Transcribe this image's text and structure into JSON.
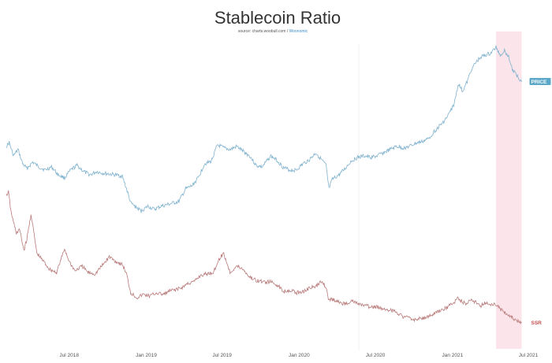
{
  "chart_data": {
    "type": "line",
    "title": "Stablecoin Ratio",
    "subtitle": "source: charts.woobull.com",
    "subtitle_link": "Woonomic",
    "x_ticks": [
      "Jul 2018",
      "Jan 2019",
      "Jul 2019",
      "Jan 2020",
      "Jul 2020",
      "Jan 2021",
      "Jul 2021"
    ],
    "x_tick_dates": [
      "2018-07-01",
      "2019-01-01",
      "2019-07-01",
      "2020-01-01",
      "2020-07-01",
      "2021-01-01",
      "2021-07-01"
    ],
    "xlim": [
      "2018-02-01",
      "2021-07-01"
    ],
    "grid": false,
    "highlight": {
      "from": "2021-04-15",
      "to": "2021-06-15",
      "color": "#fbe4ea"
    },
    "series": [
      {
        "name": "PRICE",
        "color": "#7fb2cf",
        "label_color": "#5aa7c8",
        "points": [
          [
            "2018-02-01",
            186
          ],
          [
            "2018-02-08",
            181
          ],
          [
            "2018-02-18",
            198
          ],
          [
            "2018-03-01",
            190
          ],
          [
            "2018-03-12",
            208
          ],
          [
            "2018-03-22",
            214
          ],
          [
            "2018-04-05",
            206
          ],
          [
            "2018-04-20",
            212
          ],
          [
            "2018-05-05",
            216
          ],
          [
            "2018-05-20",
            212
          ],
          [
            "2018-06-05",
            222
          ],
          [
            "2018-06-20",
            226
          ],
          [
            "2018-07-05",
            216
          ],
          [
            "2018-07-20",
            210
          ],
          [
            "2018-08-05",
            218
          ],
          [
            "2018-08-20",
            222
          ],
          [
            "2018-09-05",
            218
          ],
          [
            "2018-09-20",
            220
          ],
          [
            "2018-10-05",
            221
          ],
          [
            "2018-10-20",
            222
          ],
          [
            "2018-11-05",
            224
          ],
          [
            "2018-11-15",
            240
          ],
          [
            "2018-11-25",
            258
          ],
          [
            "2018-12-10",
            264
          ],
          [
            "2018-12-20",
            268
          ],
          [
            "2019-01-05",
            262
          ],
          [
            "2019-01-20",
            266
          ],
          [
            "2019-02-05",
            262
          ],
          [
            "2019-02-20",
            260
          ],
          [
            "2019-03-05",
            258
          ],
          [
            "2019-03-20",
            256
          ],
          [
            "2019-04-05",
            240
          ],
          [
            "2019-04-20",
            236
          ],
          [
            "2019-05-05",
            226
          ],
          [
            "2019-05-20",
            208
          ],
          [
            "2019-06-05",
            205
          ],
          [
            "2019-06-20",
            184
          ],
          [
            "2019-07-05",
            188
          ],
          [
            "2019-07-20",
            190
          ],
          [
            "2019-08-05",
            186
          ],
          [
            "2019-08-20",
            192
          ],
          [
            "2019-09-05",
            198
          ],
          [
            "2019-09-20",
            210
          ],
          [
            "2019-10-05",
            212
          ],
          [
            "2019-10-25",
            198
          ],
          [
            "2019-11-10",
            204
          ],
          [
            "2019-11-25",
            213
          ],
          [
            "2019-12-10",
            216
          ],
          [
            "2019-12-25",
            216
          ],
          [
            "2020-01-10",
            208
          ],
          [
            "2020-01-25",
            203
          ],
          [
            "2020-02-10",
            194
          ],
          [
            "2020-02-25",
            204
          ],
          [
            "2020-03-05",
            210
          ],
          [
            "2020-03-12",
            240
          ],
          [
            "2020-03-20",
            228
          ],
          [
            "2020-04-05",
            222
          ],
          [
            "2020-04-20",
            214
          ],
          [
            "2020-05-05",
            204
          ],
          [
            "2020-05-20",
            200
          ],
          [
            "2020-06-05",
            198
          ],
          [
            "2020-06-20",
            200
          ],
          [
            "2020-07-05",
            198
          ],
          [
            "2020-07-20",
            194
          ],
          [
            "2020-08-05",
            190
          ],
          [
            "2020-08-20",
            186
          ],
          [
            "2020-09-05",
            188
          ],
          [
            "2020-09-20",
            186
          ],
          [
            "2020-10-05",
            182
          ],
          [
            "2020-10-20",
            180
          ],
          [
            "2020-11-05",
            176
          ],
          [
            "2020-11-20",
            166
          ],
          [
            "2020-12-05",
            158
          ],
          [
            "2020-12-20",
            148
          ],
          [
            "2021-01-05",
            132
          ],
          [
            "2021-01-15",
            106
          ],
          [
            "2021-01-25",
            116
          ],
          [
            "2021-02-05",
            104
          ],
          [
            "2021-02-15",
            88
          ],
          [
            "2021-02-25",
            80
          ],
          [
            "2021-03-10",
            72
          ],
          [
            "2021-03-20",
            70
          ],
          [
            "2021-04-01",
            68
          ],
          [
            "2021-04-15",
            60
          ],
          [
            "2021-04-25",
            70
          ],
          [
            "2021-05-05",
            64
          ],
          [
            "2021-05-15",
            72
          ],
          [
            "2021-05-25",
            90
          ],
          [
            "2021-06-05",
            96
          ],
          [
            "2021-06-15",
            104
          ]
        ]
      },
      {
        "name": "SSR",
        "color": "#b97a7a",
        "label_color": "#c44d4d",
        "points": [
          [
            "2018-02-01",
            248
          ],
          [
            "2018-02-06",
            244
          ],
          [
            "2018-02-12",
            268
          ],
          [
            "2018-02-18",
            282
          ],
          [
            "2018-02-25",
            296
          ],
          [
            "2018-03-05",
            292
          ],
          [
            "2018-03-15",
            318
          ],
          [
            "2018-03-22",
            304
          ],
          [
            "2018-04-01",
            272
          ],
          [
            "2018-04-15",
            322
          ],
          [
            "2018-05-01",
            332
          ],
          [
            "2018-05-15",
            342
          ],
          [
            "2018-06-01",
            346
          ],
          [
            "2018-06-10",
            332
          ],
          [
            "2018-06-20",
            316
          ],
          [
            "2018-07-01",
            332
          ],
          [
            "2018-07-15",
            344
          ],
          [
            "2018-08-01",
            338
          ],
          [
            "2018-08-15",
            346
          ],
          [
            "2018-09-01",
            348
          ],
          [
            "2018-09-20",
            336
          ],
          [
            "2018-10-05",
            326
          ],
          [
            "2018-10-20",
            332
          ],
          [
            "2018-11-05",
            336
          ],
          [
            "2018-11-15",
            348
          ],
          [
            "2018-11-25",
            372
          ],
          [
            "2018-12-10",
            378
          ],
          [
            "2018-12-25",
            374
          ],
          [
            "2019-01-10",
            376
          ],
          [
            "2019-01-25",
            372
          ],
          [
            "2019-02-10",
            374
          ],
          [
            "2019-02-25",
            370
          ],
          [
            "2019-03-10",
            368
          ],
          [
            "2019-03-25",
            366
          ],
          [
            "2019-04-10",
            360
          ],
          [
            "2019-04-25",
            358
          ],
          [
            "2019-05-10",
            350
          ],
          [
            "2019-05-25",
            348
          ],
          [
            "2019-06-10",
            346
          ],
          [
            "2019-06-25",
            328
          ],
          [
            "2019-07-05",
            322
          ],
          [
            "2019-07-20",
            346
          ],
          [
            "2019-08-05",
            338
          ],
          [
            "2019-08-20",
            342
          ],
          [
            "2019-09-05",
            352
          ],
          [
            "2019-09-20",
            356
          ],
          [
            "2019-10-05",
            358
          ],
          [
            "2019-10-25",
            358
          ],
          [
            "2019-11-10",
            362
          ],
          [
            "2019-11-25",
            370
          ],
          [
            "2019-12-10",
            368
          ],
          [
            "2019-12-25",
            372
          ],
          [
            "2020-01-10",
            370
          ],
          [
            "2020-01-25",
            366
          ],
          [
            "2020-02-10",
            364
          ],
          [
            "2020-02-25",
            356
          ],
          [
            "2020-03-05",
            366
          ],
          [
            "2020-03-12",
            382
          ],
          [
            "2020-03-20",
            380
          ],
          [
            "2020-04-05",
            384
          ],
          [
            "2020-04-20",
            386
          ],
          [
            "2020-05-05",
            382
          ],
          [
            "2020-05-20",
            386
          ],
          [
            "2020-06-05",
            388
          ],
          [
            "2020-06-20",
            390
          ],
          [
            "2020-07-05",
            390
          ],
          [
            "2020-07-20",
            392
          ],
          [
            "2020-08-05",
            394
          ],
          [
            "2020-08-20",
            396
          ],
          [
            "2020-09-05",
            402
          ],
          [
            "2020-09-20",
            404
          ],
          [
            "2020-10-05",
            406
          ],
          [
            "2020-10-20",
            404
          ],
          [
            "2020-11-05",
            402
          ],
          [
            "2020-11-20",
            398
          ],
          [
            "2020-12-05",
            394
          ],
          [
            "2020-12-20",
            390
          ],
          [
            "2021-01-05",
            384
          ],
          [
            "2021-01-15",
            378
          ],
          [
            "2021-01-25",
            384
          ],
          [
            "2021-02-05",
            386
          ],
          [
            "2021-02-15",
            380
          ],
          [
            "2021-02-25",
            384
          ],
          [
            "2021-03-10",
            388
          ],
          [
            "2021-03-20",
            384
          ],
          [
            "2021-04-01",
            388
          ],
          [
            "2021-04-15",
            386
          ],
          [
            "2021-04-25",
            392
          ],
          [
            "2021-05-05",
            396
          ],
          [
            "2021-05-15",
            400
          ],
          [
            "2021-05-25",
            404
          ],
          [
            "2021-06-05",
            408
          ],
          [
            "2021-06-15",
            410
          ]
        ]
      }
    ]
  }
}
